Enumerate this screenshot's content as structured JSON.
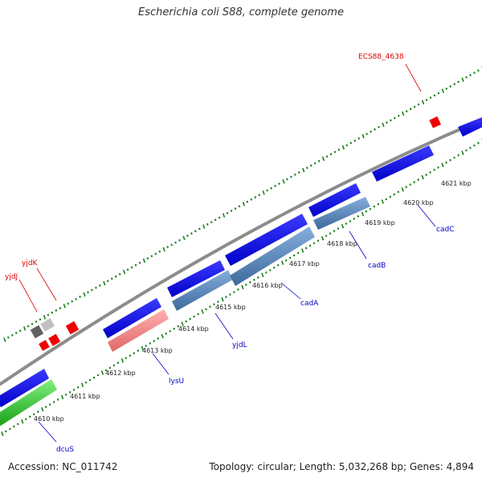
{
  "title": "Escherichia coli S88, complete genome",
  "footer": {
    "accession": "Accession: NC_011742",
    "stats": "Topology: circular; Length: 5,032,268 bp; Genes: 4,894"
  },
  "colors": {
    "backbone": "#8c8c8c",
    "tick": "#1a7d1a",
    "forward_gene": "#0000ee",
    "reverse_gene": "#4d7fb3",
    "rrna": "#f08080",
    "trna": "#30c030",
    "pseudo": "#808080",
    "misc": "#ee0000",
    "label_blue": "#0000cc",
    "label_red": "#dd0000"
  },
  "tick_labels": [
    {
      "text": "4610 kbp",
      "kbp": 4610
    },
    {
      "text": "4611 kbp",
      "kbp": 4611
    },
    {
      "text": "4612 kbp",
      "kbp": 4612
    },
    {
      "text": "4613 kbp",
      "kbp": 4613
    },
    {
      "text": "4614 kbp",
      "kbp": 4614
    },
    {
      "text": "4615 kbp",
      "kbp": 4615
    },
    {
      "text": "4616 kbp",
      "kbp": 4616
    },
    {
      "text": "4617 kbp",
      "kbp": 4617
    },
    {
      "text": "4618 kbp",
      "kbp": 4618
    },
    {
      "text": "4619 kbp",
      "kbp": 4619
    },
    {
      "text": "4620 kbp",
      "kbp": 4620
    },
    {
      "text": "4621 kbp",
      "kbp": 4621
    }
  ],
  "gene_labels": [
    {
      "text": "dcuS",
      "color": "blue"
    },
    {
      "text": "lysU",
      "color": "blue"
    },
    {
      "text": "yjdL",
      "color": "blue"
    },
    {
      "text": "cadA",
      "color": "blue"
    },
    {
      "text": "cadB",
      "color": "blue"
    },
    {
      "text": "cadC",
      "color": "blue"
    },
    {
      "text": "yjdJ",
      "color": "red"
    },
    {
      "text": "yjdK",
      "color": "red"
    },
    {
      "text": "ECS88_4638",
      "color": "red"
    }
  ]
}
